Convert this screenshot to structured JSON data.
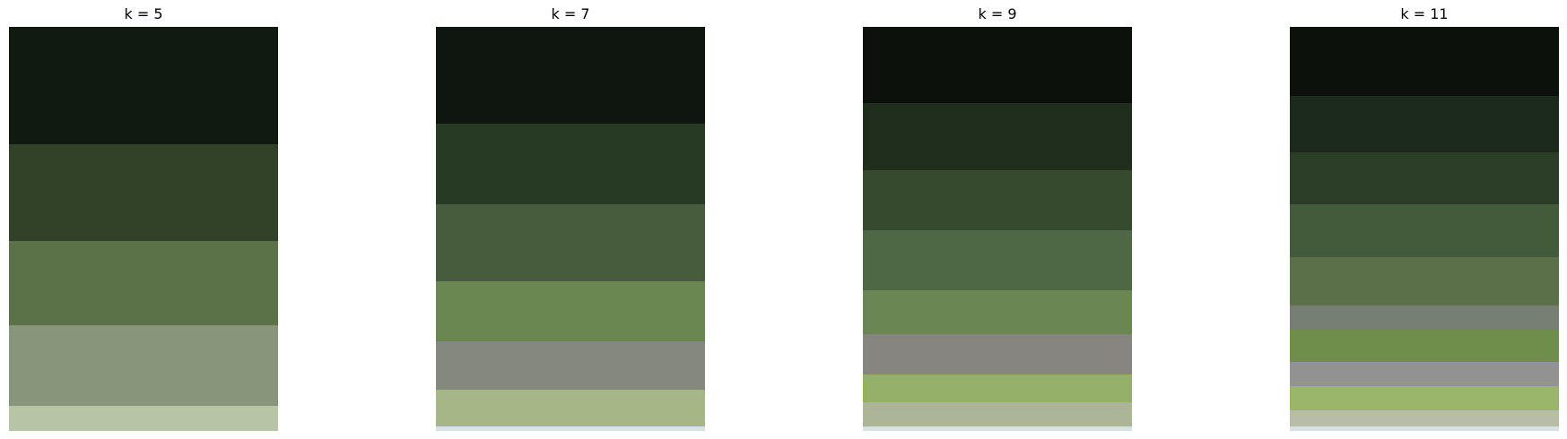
{
  "panels": [
    {
      "title": "k = 5",
      "colors": [
        "#111a11",
        "#314229",
        "#5b7248",
        "#89957a",
        "#b8c4a6"
      ],
      "proportions": [
        0.29,
        0.24,
        0.21,
        0.2,
        0.06
      ]
    },
    {
      "title": "k = 7",
      "colors": [
        "#0f160f",
        "#263a24",
        "#465c3c",
        "#6a8651",
        "#84887e",
        "#a6b686",
        "#d7e3e3"
      ],
      "proportions": [
        0.24,
        0.2,
        0.19,
        0.15,
        0.12,
        0.09,
        0.01
      ]
    },
    {
      "title": "k = 9",
      "colors": [
        "#0c110c",
        "#1f2e1d",
        "#364a2e",
        "#4e6744",
        "#6a8652",
        "#868580",
        "#95b168",
        "#acb596",
        "#d7e3e3"
      ],
      "proportions": [
        0.19,
        0.17,
        0.15,
        0.15,
        0.11,
        0.1,
        0.07,
        0.06,
        0.01
      ]
    },
    {
      "title": "k = 11",
      "colors": [
        "#0c110c",
        "#1b2a1b",
        "#2c3e28",
        "#435a3b",
        "#5b7048",
        "#777e73",
        "#6f8e4c",
        "#939292",
        "#99b66a",
        "#b7bda6",
        "#d7e3e3"
      ],
      "proportions": [
        0.17,
        0.14,
        0.13,
        0.13,
        0.12,
        0.06,
        0.08,
        0.06,
        0.06,
        0.04,
        0.01
      ]
    }
  ]
}
